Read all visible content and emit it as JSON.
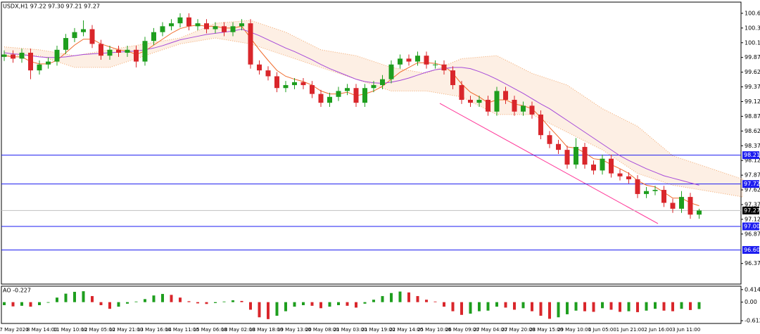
{
  "chart_data": [
    {
      "type": "candlestick",
      "title": "USDX,H1  97.22 97.30 97.21 97.27",
      "x_labels": [
        "7 May 2020",
        "8 May 14:00",
        "11 May 10:00",
        "12 May 05:00",
        "12 May 21:00",
        "13 May 16:00",
        "14 May 11:00",
        "15 May 06:00",
        "18 May 02:00",
        "18 May 18:00",
        "19 May 13:00",
        "20 May 08:00",
        "21 May 03:00",
        "21 May 19:00",
        "22 May 14:00",
        "25 May 10:00",
        "26 May 09:00",
        "27 May 04:00",
        "27 May 20:00",
        "28 May 15:00",
        "29 May 10:00",
        "1 Jun 05:00",
        "1 Jun 21:00",
        "2 Jun 16:00",
        "3 Jun 11:00"
      ],
      "open": [
        99.88,
        99.92,
        99.85,
        99.95,
        99.65,
        99.75,
        99.8,
        100.0,
        100.2,
        100.3,
        100.35,
        100.1,
        99.9,
        100.0,
        99.95,
        100.0,
        99.8,
        100.15,
        100.3,
        100.4,
        100.45,
        100.55,
        100.4,
        100.45,
        100.35,
        100.4,
        100.3,
        100.4,
        100.45,
        99.75,
        99.65,
        99.55,
        99.35,
        99.4,
        99.45,
        99.4,
        99.25,
        99.1,
        99.2,
        99.3,
        99.35,
        99.1,
        99.35,
        99.4,
        99.5,
        99.75,
        99.85,
        99.8,
        99.9,
        99.75,
        99.75,
        99.65,
        99.4,
        99.15,
        99.1,
        99.15,
        98.95,
        99.3,
        99.15,
        98.95,
        99.05,
        98.9,
        98.55,
        98.4,
        98.3,
        98.05,
        98.35,
        98.05,
        97.95,
        98.15,
        97.9,
        97.85,
        97.8,
        97.55,
        97.6,
        97.62,
        97.4,
        97.3,
        97.5,
        97.2
      ],
      "high": [
        99.99,
        99.99,
        100.02,
        100.02,
        99.82,
        99.87,
        100.07,
        100.27,
        100.37,
        100.5,
        100.42,
        100.17,
        100.07,
        100.07,
        100.07,
        100.07,
        100.22,
        100.37,
        100.47,
        100.52,
        100.62,
        100.62,
        100.52,
        100.52,
        100.47,
        100.47,
        100.47,
        100.52,
        100.52,
        99.82,
        99.72,
        99.62,
        99.47,
        99.52,
        99.52,
        99.47,
        99.32,
        99.27,
        99.37,
        99.42,
        99.42,
        99.42,
        99.47,
        99.57,
        99.82,
        99.92,
        99.92,
        99.97,
        99.97,
        99.82,
        99.82,
        99.72,
        99.47,
        99.22,
        99.22,
        99.22,
        99.37,
        99.37,
        99.22,
        99.12,
        99.12,
        98.97,
        98.62,
        98.47,
        98.37,
        98.5,
        98.42,
        98.12,
        98.22,
        98.22,
        97.97,
        97.92,
        97.87,
        97.67,
        97.69,
        97.69,
        97.47,
        97.6,
        97.57,
        97.3
      ],
      "low": [
        99.81,
        99.78,
        99.78,
        99.5,
        99.58,
        99.68,
        99.73,
        99.93,
        100.13,
        100.23,
        100.03,
        99.83,
        99.83,
        99.88,
        99.88,
        99.7,
        99.73,
        100.08,
        100.23,
        100.33,
        100.38,
        100.33,
        100.33,
        100.28,
        100.28,
        100.23,
        100.23,
        100.33,
        99.68,
        99.58,
        99.48,
        99.28,
        99.28,
        99.33,
        99.33,
        99.18,
        99.03,
        99.03,
        99.13,
        99.23,
        99.03,
        99.03,
        99.28,
        99.33,
        99.43,
        99.68,
        99.73,
        99.73,
        99.68,
        99.68,
        99.58,
        99.33,
        99.08,
        99.03,
        99.03,
        98.88,
        98.88,
        99.08,
        98.88,
        98.88,
        98.83,
        98.48,
        98.33,
        98.23,
        97.98,
        97.98,
        97.98,
        97.88,
        97.88,
        97.83,
        97.78,
        97.73,
        97.48,
        97.48,
        97.53,
        97.33,
        97.23,
        97.23,
        97.13,
        97.13
      ],
      "close": [
        99.92,
        99.85,
        99.95,
        99.65,
        99.75,
        99.8,
        100.0,
        100.2,
        100.3,
        100.35,
        100.1,
        99.9,
        100.0,
        99.95,
        100.0,
        99.8,
        100.15,
        100.3,
        100.4,
        100.45,
        100.55,
        100.4,
        100.45,
        100.35,
        100.4,
        100.3,
        100.4,
        100.45,
        99.75,
        99.65,
        99.55,
        99.35,
        99.4,
        99.45,
        99.4,
        99.25,
        99.1,
        99.2,
        99.3,
        99.35,
        99.1,
        99.35,
        99.4,
        99.5,
        99.75,
        99.85,
        99.8,
        99.9,
        99.75,
        99.75,
        99.65,
        99.4,
        99.15,
        99.1,
        99.15,
        98.95,
        99.3,
        99.15,
        98.95,
        99.05,
        98.9,
        98.55,
        98.4,
        98.3,
        98.05,
        98.35,
        98.05,
        97.95,
        98.15,
        97.9,
        97.85,
        97.8,
        97.55,
        97.6,
        97.62,
        97.4,
        97.3,
        97.5,
        97.2,
        97.27
      ],
      "up_color": "#1e9e1e",
      "down_color": "#d9262b",
      "lines": [
        {
          "color": "#f06a2a",
          "values": [
            99.9,
            99.88,
            99.88,
            99.8,
            99.76,
            99.76,
            99.82,
            99.95,
            100.08,
            100.18,
            100.18,
            100.1,
            100.05,
            100.0,
            99.98,
            99.92,
            99.98,
            100.08,
            100.18,
            100.28,
            100.36,
            100.4,
            100.42,
            100.4,
            100.4,
            100.37,
            100.37,
            100.4,
            100.2,
            100.0,
            99.82,
            99.65,
            99.55,
            99.5,
            99.46,
            99.4,
            99.3,
            99.25,
            99.25,
            99.28,
            99.22,
            99.25,
            99.3,
            99.38,
            99.5,
            99.62,
            99.7,
            99.78,
            99.78,
            99.77,
            99.73,
            99.6,
            99.42,
            99.28,
            99.2,
            99.1,
            99.15,
            99.15,
            99.08,
            99.05,
            99.0,
            98.85,
            98.68,
            98.52,
            98.35,
            98.33,
            98.25,
            98.15,
            98.13,
            98.05,
            97.98,
            97.9,
            97.78,
            97.7,
            97.67,
            97.58,
            97.48,
            97.48,
            97.4,
            97.35
          ]
        },
        {
          "color": "#a64ad9",
          "values": [
            99.95,
            99.93,
            99.92,
            99.9,
            99.88,
            99.87,
            99.87,
            99.88,
            99.9,
            99.92,
            99.93,
            99.94,
            99.95,
            99.96,
            99.97,
            99.98,
            100.0,
            100.03,
            100.07,
            100.12,
            100.17,
            100.2,
            100.23,
            100.26,
            100.28,
            100.3,
            100.32,
            100.35,
            100.3,
            100.24,
            100.17,
            100.1,
            100.03,
            99.97,
            99.9,
            99.83,
            99.75,
            99.68,
            99.62,
            99.56,
            99.5,
            99.46,
            99.44,
            99.43,
            99.45,
            99.48,
            99.52,
            99.57,
            99.62,
            99.66,
            99.68,
            99.7,
            99.7,
            99.68,
            99.63,
            99.57,
            99.5,
            99.42,
            99.34,
            99.26,
            99.17,
            99.08,
            99.0,
            98.9,
            98.8,
            98.7,
            98.6,
            98.5,
            98.4,
            98.3,
            98.2,
            98.12,
            98.05,
            97.98,
            97.92,
            97.86,
            97.82,
            97.78,
            97.74,
            97.7
          ]
        }
      ],
      "cloud": {
        "color": "#f2a66a",
        "x": [
          0,
          4,
          8,
          12,
          16,
          20,
          24,
          28,
          32,
          36,
          40,
          44,
          48,
          52,
          56,
          60,
          64,
          68,
          72,
          76,
          80,
          84
        ],
        "upper": [
          100.05,
          100.0,
          99.9,
          100.0,
          100.1,
          100.2,
          100.45,
          100.5,
          100.3,
          100.0,
          99.9,
          99.7,
          99.6,
          99.85,
          99.9,
          99.6,
          99.4,
          99.0,
          98.7,
          98.2,
          98.0,
          97.8
        ],
        "lower": [
          99.9,
          99.9,
          99.7,
          99.7,
          99.9,
          100.1,
          100.2,
          100.1,
          99.9,
          99.7,
          99.5,
          99.3,
          99.3,
          99.2,
          98.9,
          98.9,
          98.6,
          98.3,
          97.9,
          97.7,
          97.6,
          97.5
        ]
      },
      "ylim": [
        96.02,
        100.81
      ],
      "yticks": [
        100.62,
        100.37,
        100.12,
        99.87,
        99.62,
        99.37,
        99.12,
        98.87,
        98.62,
        98.37,
        98.12,
        97.87,
        97.62,
        97.37,
        97.12,
        96.87,
        96.37
      ],
      "level_color": "#1c1cf0",
      "levels": [
        98.21,
        97.72,
        {
          "value": 97,
          "label": "97.00"
        },
        {
          "value": 96.6,
          "label": "96.60"
        }
      ],
      "last": 97.27
    },
    {
      "type": "bar",
      "title": "AO -0.227",
      "values": [
        -0.1,
        -0.14,
        -0.12,
        -0.15,
        -0.1,
        -0.02,
        0.15,
        0.28,
        0.34,
        0.36,
        0.2,
        -0.1,
        -0.22,
        -0.15,
        -0.05,
        0.02,
        0.1,
        0.22,
        0.27,
        0.24,
        0.15,
        0.03,
        -0.04,
        -0.06,
        -0.03,
        0.02,
        0.06,
        0.04,
        -0.25,
        -0.5,
        -0.56,
        -0.45,
        -0.3,
        -0.15,
        -0.1,
        -0.12,
        -0.2,
        -0.15,
        -0.1,
        -0.12,
        -0.18,
        -0.05,
        0.08,
        0.2,
        0.3,
        0.35,
        0.32,
        0.2,
        0.08,
        0.02,
        -0.15,
        -0.3,
        -0.42,
        -0.38,
        -0.3,
        -0.28,
        -0.15,
        -0.18,
        -0.25,
        -0.2,
        -0.3,
        -0.45,
        -0.55,
        -0.5,
        -0.4,
        -0.28,
        -0.3,
        -0.32,
        -0.2,
        -0.25,
        -0.32,
        -0.3,
        -0.33,
        -0.28,
        -0.22,
        -0.28,
        -0.3,
        -0.22,
        -0.26,
        -0.227
      ],
      "up_color": "#1e9e1e",
      "down_color": "#d9262b",
      "ylim": [
        -0.68,
        0.48
      ],
      "yticks": [
        0.414,
        {
          "value": 0,
          "label": "0.00"
        },
        -0.612
      ]
    }
  ]
}
